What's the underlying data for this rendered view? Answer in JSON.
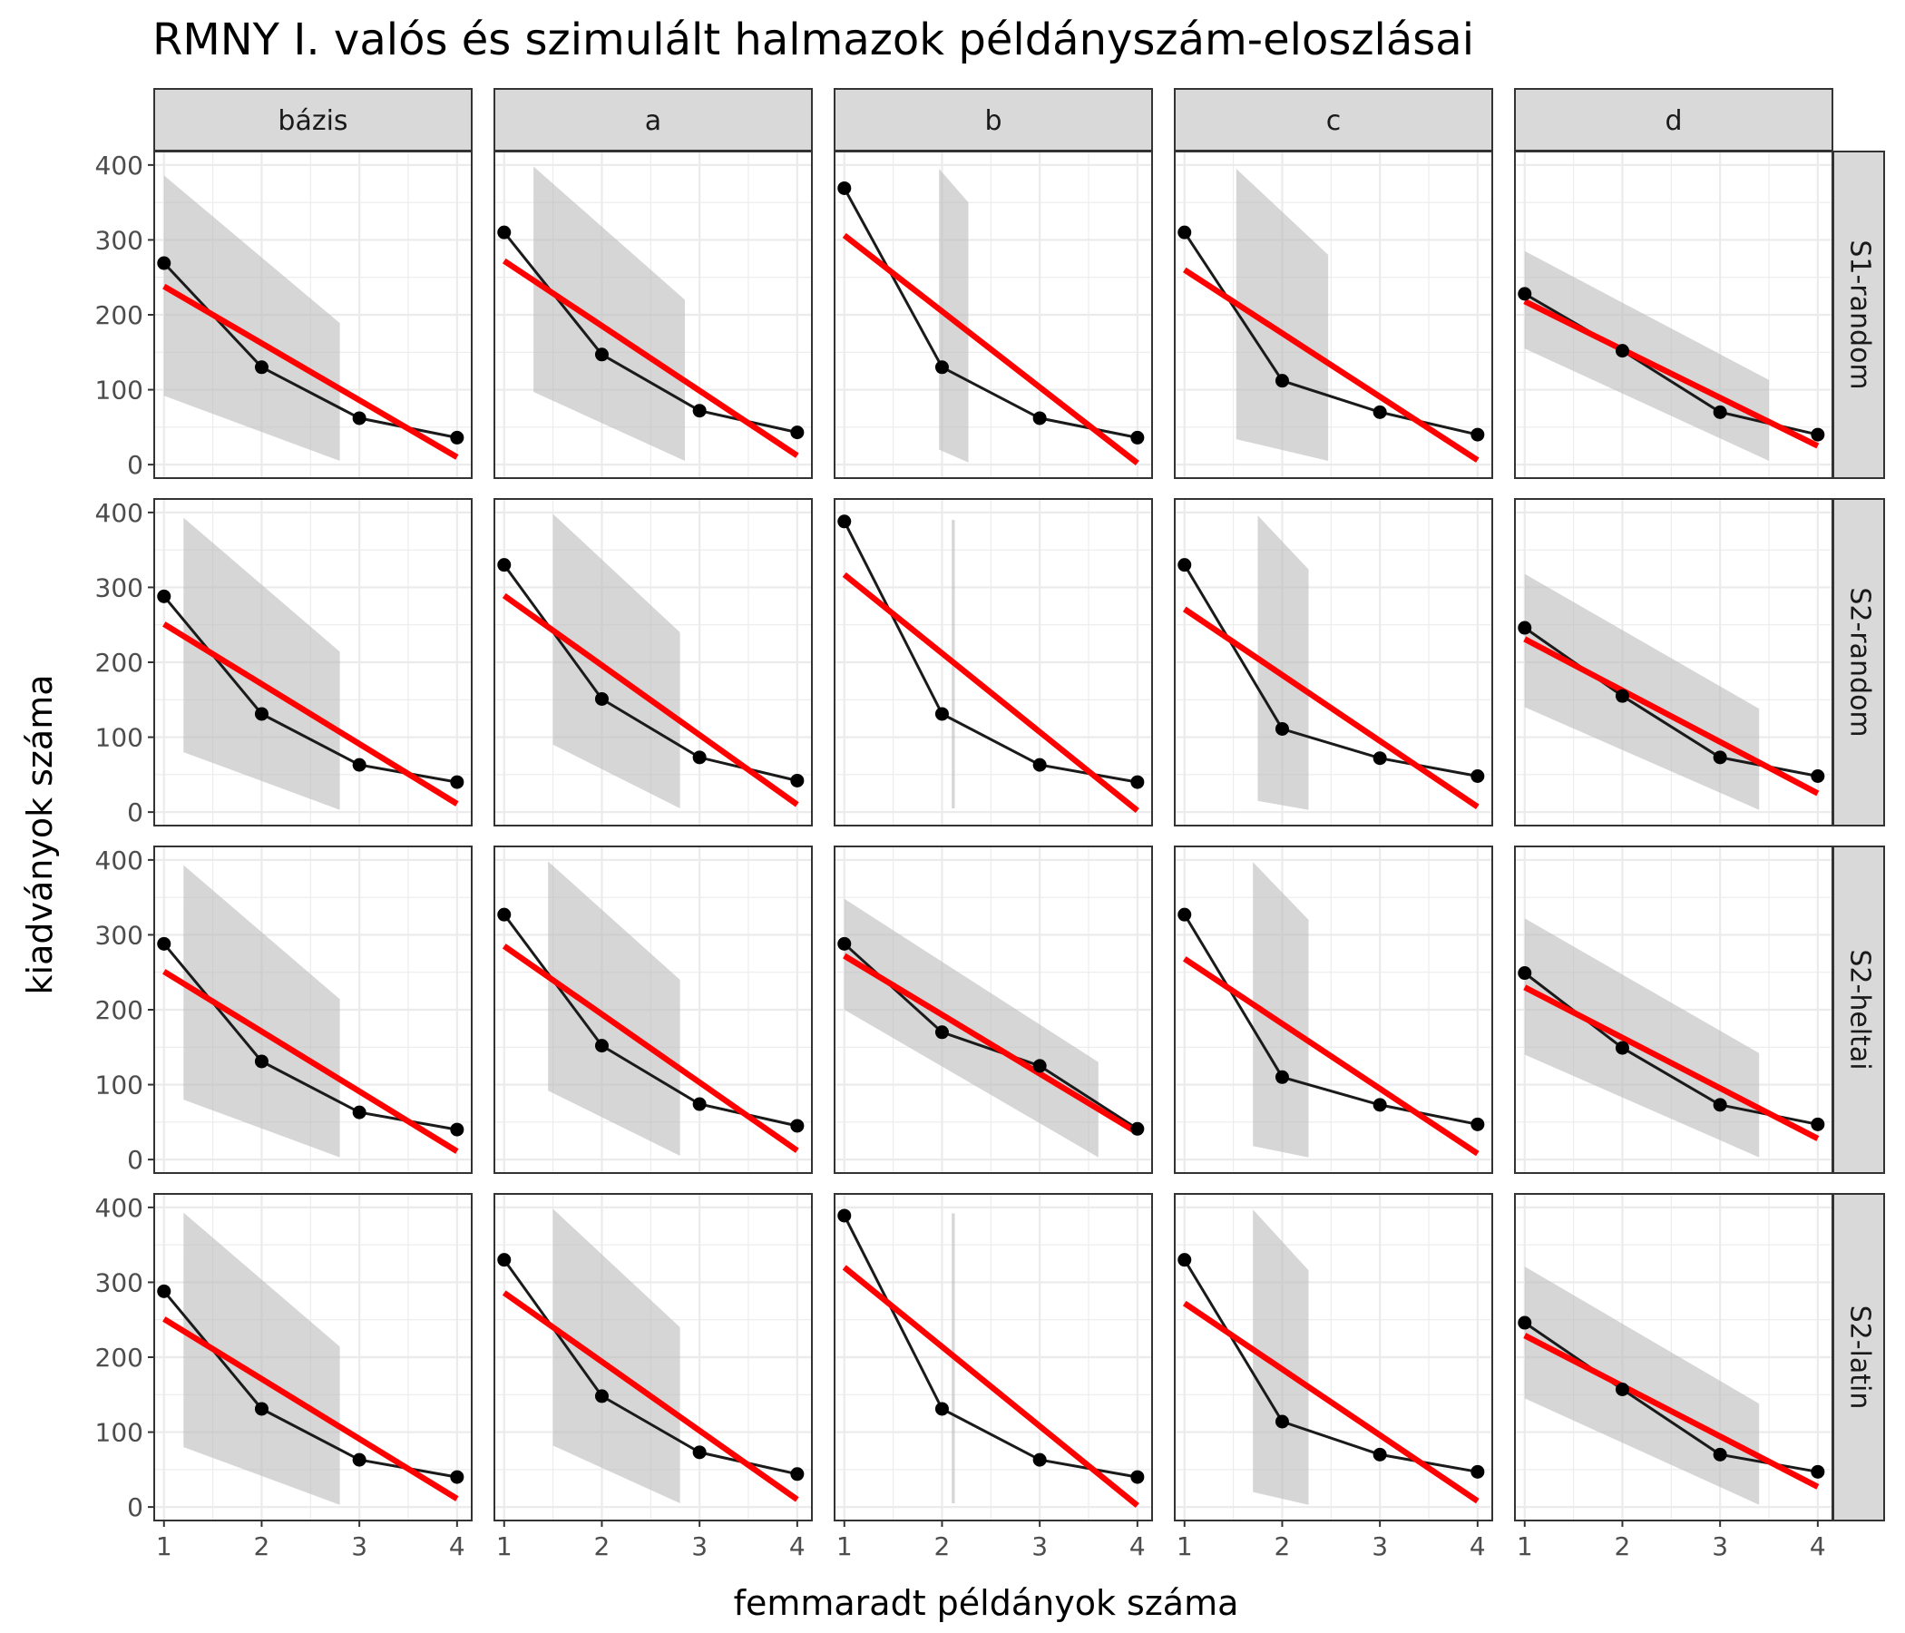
{
  "chart_data": {
    "type": "line",
    "title": "RMNY I. valós és szimulált halmazok példányszám-eloszlásai",
    "xlabel": "femmaradt példányok száma",
    "ylabel": "kiadványok száma",
    "xlim": [
      0.9,
      4.15
    ],
    "ylim": [
      -18,
      418
    ],
    "x_ticks": [
      1,
      2,
      3,
      4
    ],
    "y_ticks": [
      0,
      100,
      200,
      300,
      400
    ],
    "columns": [
      "bázis",
      "a",
      "b",
      "c",
      "d"
    ],
    "rows": [
      "S1-random",
      "S2-random",
      "S2-heltai",
      "S2-latin"
    ],
    "grid": true,
    "legend": "none",
    "colors": {
      "points": "#000000",
      "line": "#1a1a1a",
      "fit": "#ff0000",
      "band": "#bdbdbd",
      "strip_fill": "#d9d9d9",
      "panel_border": "#333333",
      "grid": "#ebebeb"
    },
    "x": [
      1,
      2,
      3,
      4
    ],
    "panels": [
      {
        "row": "S1-random",
        "col": "bázis",
        "y": [
          269,
          130,
          62,
          36
        ],
        "fit": [
          238,
          10
        ],
        "band": [
          [
            1,
            92,
            386
          ],
          [
            2.8,
            5,
            189
          ]
        ]
      },
      {
        "row": "S1-random",
        "col": "a",
        "y": [
          310,
          147,
          72,
          43
        ],
        "fit": [
          272,
          12
        ],
        "band": [
          [
            1.3,
            97,
            398
          ],
          [
            2.85,
            5,
            220
          ]
        ]
      },
      {
        "row": "S1-random",
        "col": "b",
        "y": [
          369,
          130,
          62,
          36
        ],
        "fit": [
          306,
          2
        ],
        "band": [
          [
            1.97,
            20,
            395
          ],
          [
            2.27,
            3,
            350
          ]
        ]
      },
      {
        "row": "S1-random",
        "col": "c",
        "y": [
          310,
          112,
          70,
          40
        ],
        "fit": [
          260,
          6
        ],
        "band": [
          [
            1.53,
            34,
            395
          ],
          [
            2.47,
            5,
            280
          ]
        ]
      },
      {
        "row": "S1-random",
        "col": "d",
        "y": [
          228,
          152,
          70,
          40
        ],
        "fit": [
          218,
          25
        ],
        "band": [
          [
            1,
            155,
            285
          ],
          [
            3.5,
            5,
            113
          ]
        ]
      },
      {
        "row": "S2-random",
        "col": "bázis",
        "y": [
          288,
          131,
          63,
          40
        ],
        "fit": [
          251,
          11
        ],
        "band": [
          [
            1.2,
            80,
            393
          ],
          [
            2.8,
            3,
            214
          ]
        ]
      },
      {
        "row": "S2-random",
        "col": "a",
        "y": [
          330,
          151,
          73,
          42
        ],
        "fit": [
          289,
          10
        ],
        "band": [
          [
            1.5,
            90,
            398
          ],
          [
            2.8,
            5,
            240
          ]
        ]
      },
      {
        "row": "S2-random",
        "col": "b",
        "y": [
          388,
          131,
          63,
          40
        ],
        "fit": [
          317,
          2
        ],
        "band": [
          [
            2.1,
            5,
            390
          ],
          [
            2.13,
            5,
            390
          ]
        ]
      },
      {
        "row": "S2-random",
        "col": "c",
        "y": [
          330,
          111,
          72,
          48
        ],
        "fit": [
          271,
          7
        ],
        "band": [
          [
            1.75,
            15,
            396
          ],
          [
            2.27,
            3,
            324
          ]
        ]
      },
      {
        "row": "S2-random",
        "col": "d",
        "y": [
          246,
          155,
          73,
          48
        ],
        "fit": [
          231,
          25
        ],
        "band": [
          [
            1,
            140,
            318
          ],
          [
            3.4,
            3,
            138
          ]
        ]
      },
      {
        "row": "S2-heltai",
        "col": "bázis",
        "y": [
          288,
          131,
          63,
          40
        ],
        "fit": [
          251,
          11
        ],
        "band": [
          [
            1.2,
            80,
            393
          ],
          [
            2.8,
            3,
            214
          ]
        ]
      },
      {
        "row": "S2-heltai",
        "col": "a",
        "y": [
          327,
          152,
          74,
          45
        ],
        "fit": [
          285,
          12
        ],
        "band": [
          [
            1.45,
            92,
            398
          ],
          [
            2.8,
            5,
            240
          ]
        ]
      },
      {
        "row": "S2-heltai",
        "col": "b",
        "y": [
          288,
          170,
          125,
          41
        ],
        "fit": [
          272,
          36
        ],
        "band": [
          [
            1,
            200,
            348
          ],
          [
            3.6,
            3,
            130
          ]
        ]
      },
      {
        "row": "S2-heltai",
        "col": "c",
        "y": [
          327,
          110,
          73,
          47
        ],
        "fit": [
          268,
          8
        ],
        "band": [
          [
            1.7,
            18,
            397
          ],
          [
            2.27,
            3,
            320
          ]
        ]
      },
      {
        "row": "S2-heltai",
        "col": "d",
        "y": [
          249,
          149,
          73,
          47
        ],
        "fit": [
          230,
          28
        ],
        "band": [
          [
            1,
            140,
            322
          ],
          [
            3.4,
            3,
            142
          ]
        ]
      },
      {
        "row": "S2-latin",
        "col": "bázis",
        "y": [
          288,
          131,
          63,
          40
        ],
        "fit": [
          251,
          11
        ],
        "band": [
          [
            1.2,
            80,
            393
          ],
          [
            2.8,
            3,
            214
          ]
        ]
      },
      {
        "row": "S2-latin",
        "col": "a",
        "y": [
          330,
          148,
          73,
          44
        ],
        "fit": [
          286,
          10
        ],
        "band": [
          [
            1.5,
            82,
            398
          ],
          [
            2.8,
            5,
            240
          ]
        ]
      },
      {
        "row": "S2-latin",
        "col": "b",
        "y": [
          389,
          131,
          63,
          40
        ],
        "fit": [
          320,
          2
        ],
        "band": [
          [
            2.1,
            5,
            392
          ],
          [
            2.13,
            5,
            392
          ]
        ]
      },
      {
        "row": "S2-latin",
        "col": "c",
        "y": [
          330,
          114,
          70,
          47
        ],
        "fit": [
          272,
          8
        ],
        "band": [
          [
            1.7,
            20,
            397
          ],
          [
            2.27,
            3,
            316
          ]
        ]
      },
      {
        "row": "S2-latin",
        "col": "d",
        "y": [
          246,
          157,
          70,
          47
        ],
        "fit": [
          229,
          27
        ],
        "band": [
          [
            1,
            145,
            321
          ],
          [
            3.4,
            3,
            138
          ]
        ]
      }
    ]
  }
}
